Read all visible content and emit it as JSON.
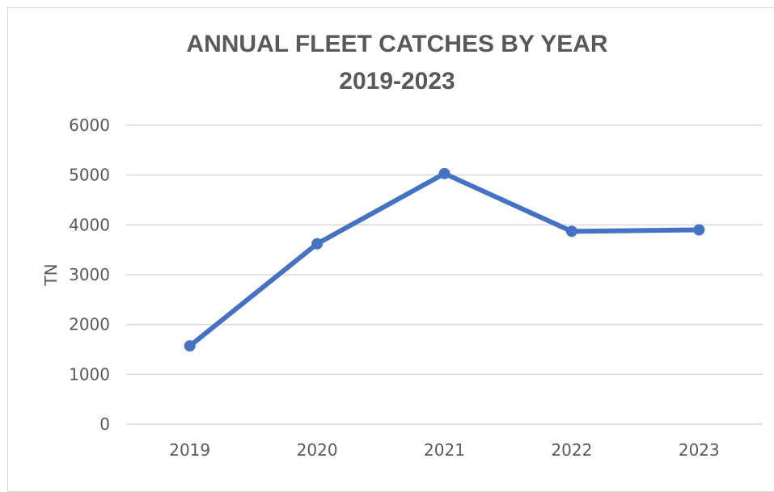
{
  "chart_data": {
    "type": "line",
    "title": "ANNUAL FLEET CATCHES BY YEAR",
    "subtitle": "2019-2023",
    "xlabel": "",
    "ylabel": "TN",
    "categories": [
      "2019",
      "2020",
      "2021",
      "2022",
      "2023"
    ],
    "series": [
      {
        "values": [
          1570,
          3620,
          5030,
          3870,
          3900
        ],
        "color": "#4472C4"
      }
    ],
    "ylim": [
      0,
      6000
    ],
    "yticks": [
      "0",
      "1000",
      "2000",
      "3000",
      "4000",
      "5000",
      "6000"
    ],
    "grid": true,
    "legend": "none",
    "gridColor": "#d9d9d9"
  }
}
